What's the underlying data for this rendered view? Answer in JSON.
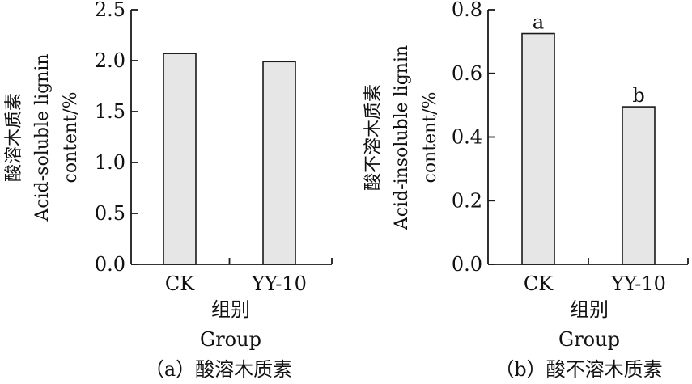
{
  "chart_data": [
    {
      "type": "bar",
      "title": "",
      "categories": [
        "CK",
        "YY-10"
      ],
      "values": [
        2.07,
        1.99
      ],
      "ylim": [
        0,
        2.5
      ],
      "yticks": [
        "0.0",
        "0.5",
        "1.0",
        "1.5",
        "2.0",
        "2.5"
      ],
      "ylabel_lines": [
        "酸溶木质素",
        "Acid-soluble lignin",
        "content/%"
      ],
      "xlabel_lines": [
        "组别",
        "Group"
      ],
      "caption": "（a）酸溶木质素",
      "significance": [],
      "bar_color": "#e6e6e6",
      "grid": false
    },
    {
      "type": "bar",
      "title": "",
      "categories": [
        "CK",
        "YY-10"
      ],
      "values": [
        0.725,
        0.495
      ],
      "ylim": [
        0,
        0.8
      ],
      "yticks": [
        "0.0",
        "0.2",
        "0.4",
        "0.6",
        "0.8"
      ],
      "ylabel_lines": [
        "酸不溶木质素",
        "Acid-insoluble lignin",
        "content/%"
      ],
      "xlabel_lines": [
        "组别",
        "Group"
      ],
      "caption": "（b）酸不溶木质素",
      "significance": [
        "a",
        "b"
      ],
      "bar_color": "#e6e6e6",
      "grid": false
    }
  ]
}
